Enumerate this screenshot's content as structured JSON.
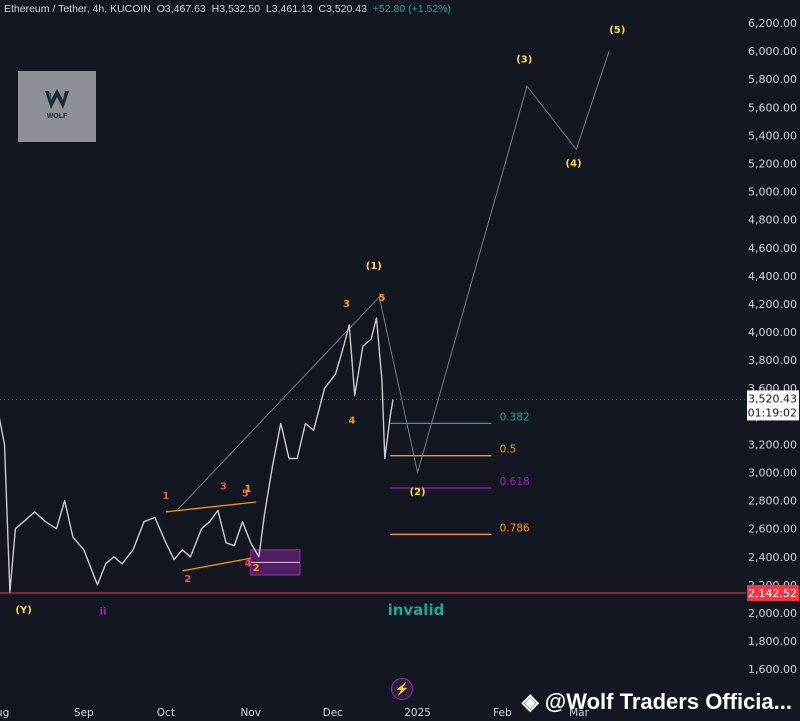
{
  "header": {
    "symbol": "Ethereum / Tether, 4h, KUCOIN",
    "open": "O3,467.63",
    "high": "H3,532.50",
    "low": "L3,461.13",
    "close": "C3,520.43",
    "change": "+52.80 (+1.52%)"
  },
  "logo": {
    "text": "WOLF"
  },
  "watermark": "@Wolf Traders Officia...",
  "chart_data": {
    "type": "line",
    "yaxis": {
      "ylim": [
        1500,
        6300
      ],
      "ticks": [
        "6,200.00",
        "6,000.00",
        "5,800.00",
        "5,600.00",
        "5,400.00",
        "5,200.00",
        "5,000.00",
        "4,800.00",
        "4,600.00",
        "4,400.00",
        "4,200.00",
        "4,000.00",
        "3,800.00",
        "3,600.00",
        "3,400.00",
        "3,200.00",
        "3,000.00",
        "2,800.00",
        "2,600.00",
        "2,400.00",
        "2,200.00",
        "2,000.00",
        "1,800.00",
        "1,600.00"
      ],
      "current_price": "3,520.43",
      "countdown": "01:19:02",
      "invalid_price": "2,142.52"
    },
    "xaxis": {
      "ticks": [
        "Aug",
        "Sep",
        "Oct",
        "Nov",
        "Dec",
        "2025",
        "Feb",
        "Mar"
      ]
    },
    "price_series": {
      "name": "",
      "points": [
        [
          "Aug 01",
          3400
        ],
        [
          "Aug 03",
          3200
        ],
        [
          "Aug 05",
          2150
        ],
        [
          "Aug 07",
          2600
        ],
        [
          "Aug 10",
          2650
        ],
        [
          "Aug 14",
          2720
        ],
        [
          "Aug 18",
          2650
        ],
        [
          "Aug 22",
          2600
        ],
        [
          "Aug 25",
          2800
        ],
        [
          "Aug 28",
          2540
        ],
        [
          "Sep 01",
          2450
        ],
        [
          "Sep 04",
          2300
        ],
        [
          "Sep 06",
          2200
        ],
        [
          "Sep 09",
          2350
        ],
        [
          "Sep 12",
          2400
        ],
        [
          "Sep 15",
          2350
        ],
        [
          "Sep 19",
          2450
        ],
        [
          "Sep 23",
          2650
        ],
        [
          "Sep 27",
          2680
        ],
        [
          "Oct 01",
          2500
        ],
        [
          "Oct 04",
          2380
        ],
        [
          "Oct 07",
          2450
        ],
        [
          "Oct 10",
          2400
        ],
        [
          "Oct 14",
          2600
        ],
        [
          "Oct 17",
          2650
        ],
        [
          "Oct 20",
          2730
        ],
        [
          "Oct 23",
          2500
        ],
        [
          "Oct 26",
          2480
        ],
        [
          "Oct 29",
          2650
        ],
        [
          "Nov 01",
          2500
        ],
        [
          "Nov 04",
          2400
        ],
        [
          "Nov 06",
          2700
        ],
        [
          "Nov 09",
          3050
        ],
        [
          "Nov 12",
          3350
        ],
        [
          "Nov 15",
          3100
        ],
        [
          "Nov 18",
          3100
        ],
        [
          "Nov 21",
          3350
        ],
        [
          "Nov 24",
          3300
        ],
        [
          "Nov 28",
          3600
        ],
        [
          "Dec 02",
          3700
        ],
        [
          "Dec 05",
          3900
        ],
        [
          "Dec 07",
          4050
        ],
        [
          "Dec 09",
          3550
        ],
        [
          "Dec 12",
          3900
        ],
        [
          "Dec 15",
          3950
        ],
        [
          "Dec 17",
          4100
        ],
        [
          "Dec 19",
          3650
        ],
        [
          "Dec 20",
          3100
        ],
        [
          "Dec 22",
          3400
        ],
        [
          "Dec 23",
          3520
        ]
      ]
    },
    "projection_path": [
      [
        "Oct 05",
        2730
      ],
      [
        "Dec 18",
        4250
      ],
      [
        "Jan 01",
        3000
      ],
      [
        "Feb 10",
        5750
      ],
      [
        "Feb 28",
        5300
      ],
      [
        "Mar 12",
        6000
      ]
    ],
    "fibonacci": [
      {
        "label": "0.382",
        "price": 3350,
        "color": "#26a69a"
      },
      {
        "label": "0.5",
        "price": 3120,
        "color": "#ff9800"
      },
      {
        "label": "0.618",
        "price": 2890,
        "color": "#9c27b0"
      },
      {
        "label": "0.786",
        "price": 2560,
        "color": "#ff9800"
      }
    ],
    "trendlines": [
      {
        "from": [
          "Oct 01",
          2720
        ],
        "to": [
          "Nov 03",
          2790
        ],
        "color": "#ff9800"
      },
      {
        "from": [
          "Oct 07",
          2300
        ],
        "to": [
          "Nov 01",
          2390
        ],
        "color": "#ff9800"
      }
    ],
    "support_zone": {
      "from_date": "Nov 01",
      "to_date": "Nov 19",
      "top": 2450,
      "bottom": 2270,
      "color": "#9c27b0"
    },
    "wave_labels": [
      {
        "text": "(Y)",
        "date": "Aug 10",
        "price": 2000,
        "color": "#ffd54f"
      },
      {
        "text": "ii",
        "date": "Sep 08",
        "price": 1990,
        "color": "#9c27b0"
      },
      {
        "text": "1",
        "date": "Oct 01",
        "price": 2810,
        "color": "#ef5350"
      },
      {
        "text": "2",
        "date": "Oct 09",
        "price": 2220,
        "color": "#ef5350"
      },
      {
        "text": "3",
        "date": "Oct 22",
        "price": 2880,
        "color": "#ef5350"
      },
      {
        "text": "4",
        "date": "Oct 31",
        "price": 2330,
        "color": "#ef5350"
      },
      {
        "text": "5",
        "date": "Oct 30",
        "price": 2830,
        "color": "#ef5350"
      },
      {
        "text": "1",
        "date": "Oct 31",
        "price": 2860,
        "color": "#ff9800"
      },
      {
        "text": "2",
        "date": "Nov 03",
        "price": 2300,
        "color": "#ff9800"
      },
      {
        "text": "3",
        "date": "Dec 06",
        "price": 4180,
        "color": "#ff9800"
      },
      {
        "text": "4",
        "date": "Dec 08",
        "price": 3350,
        "color": "#ff9800"
      },
      {
        "text": "5",
        "date": "Dec 19",
        "price": 4220,
        "color": "#ff9800"
      },
      {
        "text": "(1)",
        "date": "Dec 16",
        "price": 4450,
        "color": "#ffd54f"
      },
      {
        "text": "(2)",
        "date": "Jan 01",
        "price": 2840,
        "color": "#ffd54f"
      },
      {
        "text": "(3)",
        "date": "Feb 09",
        "price": 5920,
        "color": "#ffd54f"
      },
      {
        "text": "(4)",
        "date": "Feb 27",
        "price": 5180,
        "color": "#ffd54f"
      },
      {
        "text": "(5)",
        "date": "Mar 15",
        "price": 6130,
        "color": "#ffd54f"
      }
    ],
    "annotations": [
      {
        "text": "invalid",
        "date": "Jan 01",
        "price": 2030,
        "color": "#26a69a"
      }
    ]
  }
}
